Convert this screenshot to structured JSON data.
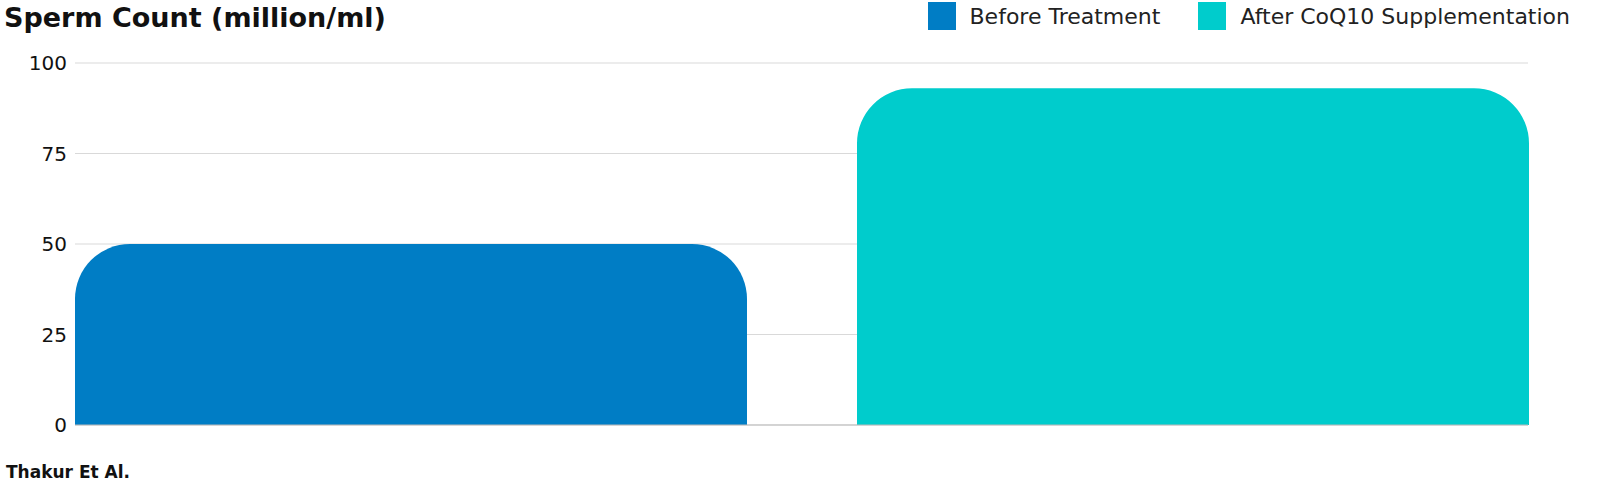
{
  "chart_data": {
    "type": "bar",
    "title": "Sperm Count (million/ml)",
    "source": "Thakur Et Al.",
    "categories": [
      null
    ],
    "series": [
      {
        "name": "Before Treatment",
        "color": "#007dc5",
        "values": [
          50
        ]
      },
      {
        "name": "After CoQ10 Supplementation",
        "color": "#00cccc",
        "values": [
          93
        ]
      }
    ],
    "ylim": [
      0,
      100
    ],
    "yticks": [
      0,
      25,
      50,
      75,
      100
    ],
    "grid": true,
    "legend": "top-right"
  }
}
